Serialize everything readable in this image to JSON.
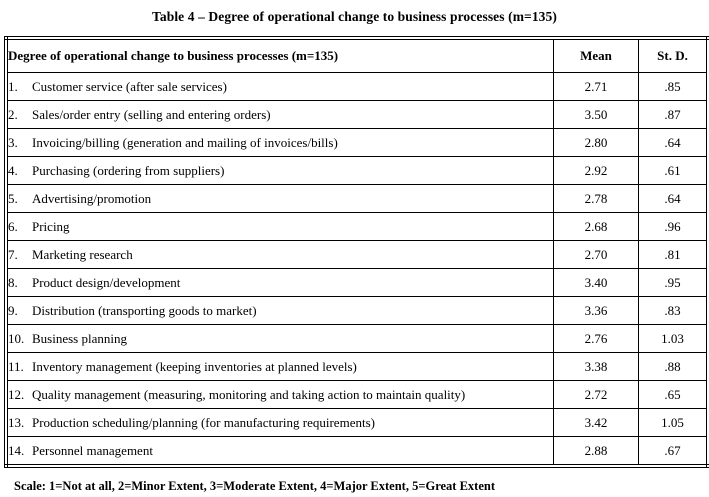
{
  "title": "Table 4 – Degree of operational change to business processes (m=135)",
  "table": {
    "header": {
      "process": "Degree of operational change to business processes (m=135)",
      "mean": "Mean",
      "std": "St. D."
    },
    "rows": [
      {
        "num": "1.",
        "label": "Customer service (after sale services)",
        "mean": "2.71",
        "std": ".85"
      },
      {
        "num": "2.",
        "label": "Sales/order entry (selling and entering orders)",
        "mean": "3.50",
        "std": ".87"
      },
      {
        "num": "3.",
        "label": "Invoicing/billing (generation and mailing of invoices/bills)",
        "mean": "2.80",
        "std": ".64"
      },
      {
        "num": "4.",
        "label": "Purchasing (ordering from suppliers)",
        "mean": "2.92",
        "std": ".61"
      },
      {
        "num": "5.",
        "label": "Advertising/promotion",
        "mean": "2.78",
        "std": ".64"
      },
      {
        "num": "6.",
        "label": "Pricing",
        "mean": "2.68",
        "std": ".96"
      },
      {
        "num": "7.",
        "label": "Marketing research",
        "mean": "2.70",
        "std": ".81"
      },
      {
        "num": "8.",
        "label": "Product design/development",
        "mean": "3.40",
        "std": ".95"
      },
      {
        "num": "9.",
        "label": "Distribution (transporting goods to market)",
        "mean": "3.36",
        "std": ".83"
      },
      {
        "num": "10.",
        "label": "Business planning",
        "mean": "2.76",
        "std": "1.03"
      },
      {
        "num": "11.",
        "label": "Inventory management (keeping inventories at planned levels)",
        "mean": "3.38",
        "std": ".88"
      },
      {
        "num": "12.",
        "label": "Quality management (measuring, monitoring and taking action to maintain quality)",
        "mean": "2.72",
        "std": ".65"
      },
      {
        "num": "13.",
        "label": "Production scheduling/planning (for manufacturing requirements)",
        "mean": "3.42",
        "std": "1.05"
      },
      {
        "num": "14.",
        "label": "Personnel management",
        "mean": "2.88",
        "std": ".67"
      }
    ]
  },
  "footnote": "Scale: 1=Not at all, 2=Minor Extent, 3=Moderate Extent, 4=Major Extent, 5=Great Extent"
}
